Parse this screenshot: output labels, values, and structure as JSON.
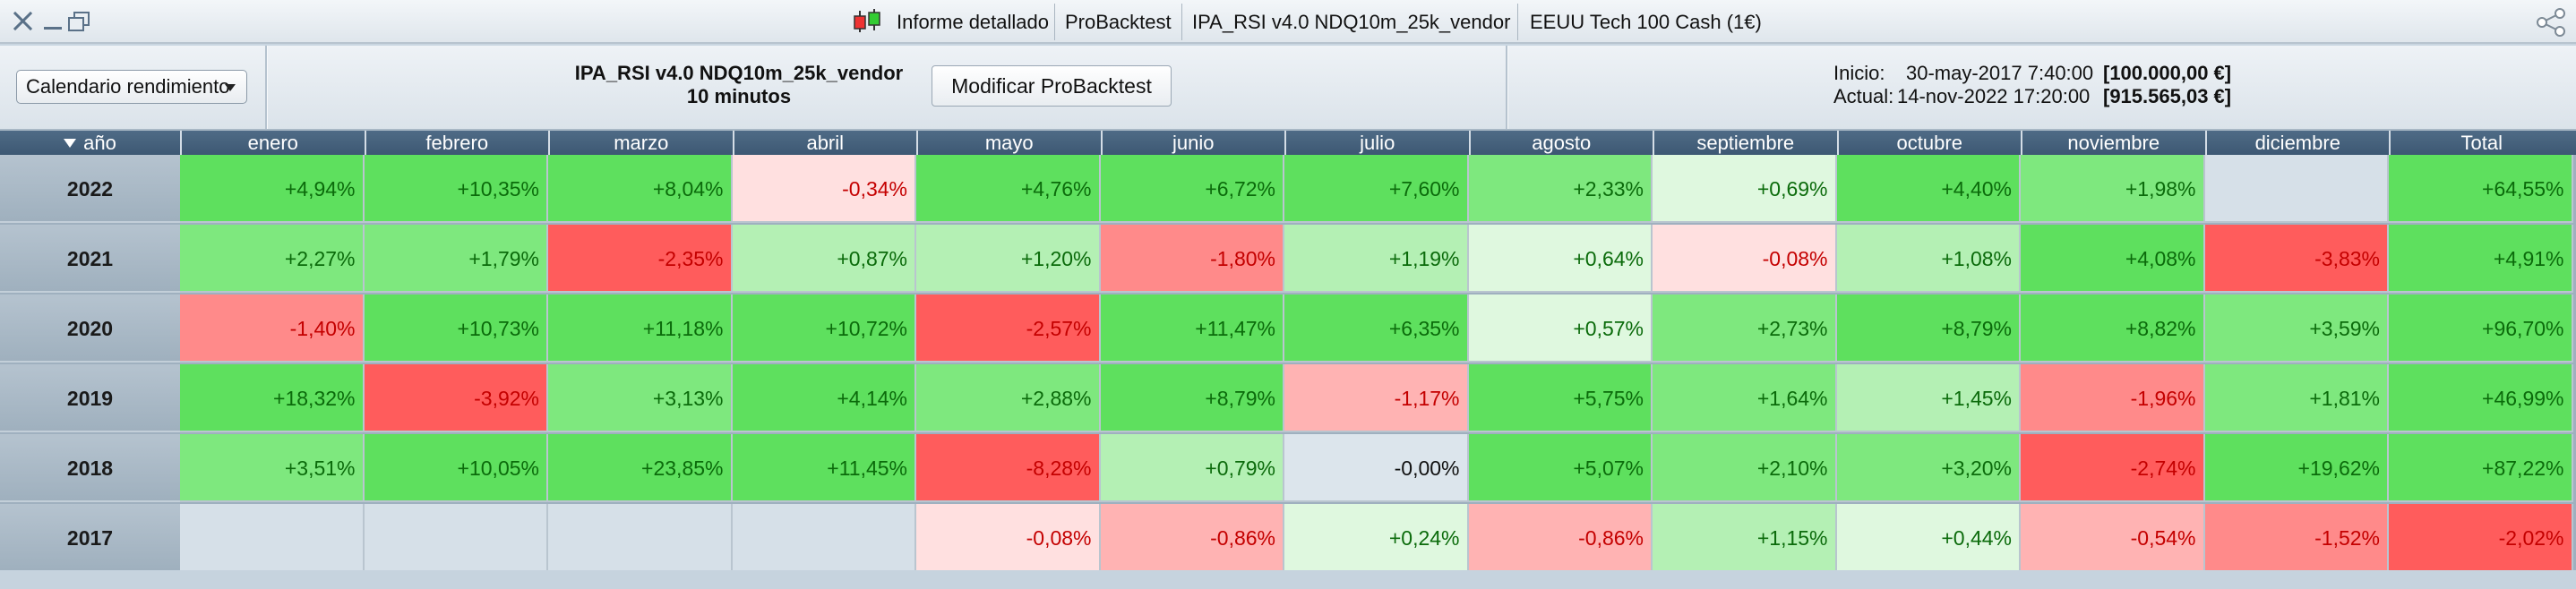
{
  "window": {
    "close_icon": "close-icon",
    "minimize_icon": "minimize-icon",
    "restore_icon": "restore-icon"
  },
  "toolbar": {
    "chart_icon": "candlestick-chart-icon",
    "report_label": "Informe detallado",
    "probacktest_label": "ProBacktest",
    "strategy_label": "IPA_RSI v4.0 NDQ10m_25k_vendor",
    "instrument_label": "EEUU Tech 100 Cash (1€)",
    "share_icon": "share-icon"
  },
  "infobar": {
    "calendar_select": "Calendario rendimiento",
    "strategy_name": "IPA_RSI v4.0 NDQ10m_25k_vendor",
    "timeframe": "10 minutos",
    "modify_button": "Modificar ProBacktest",
    "start_label": "Inicio:",
    "start_date": "30-may-2017 7:40:00",
    "start_capital": "[100.000,00 €]",
    "current_label": "Actual:",
    "current_date": "14-nov-2022 17:20:00",
    "current_capital": "[915.565,03 €]"
  },
  "table": {
    "year_header": "año",
    "months": [
      "enero",
      "febrero",
      "marzo",
      "abril",
      "mayo",
      "junio",
      "julio",
      "agosto",
      "septiembre",
      "octubre",
      "noviembre",
      "diciembre"
    ],
    "total_header": "Total",
    "rows": [
      {
        "year": "2022",
        "values": [
          "+4,94%",
          "+10,35%",
          "+8,04%",
          "-0,34%",
          "+4,76%",
          "+6,72%",
          "+7,60%",
          "+2,33%",
          "+0,69%",
          "+4,40%",
          "+1,98%",
          "",
          "+64,55%"
        ]
      },
      {
        "year": "2021",
        "values": [
          "+2,27%",
          "+1,79%",
          "-2,35%",
          "+0,87%",
          "+1,20%",
          "-1,80%",
          "+1,19%",
          "+0,64%",
          "-0,08%",
          "+1,08%",
          "+4,08%",
          "-3,83%",
          "+4,91%"
        ]
      },
      {
        "year": "2020",
        "values": [
          "-1,40%",
          "+10,73%",
          "+11,18%",
          "+10,72%",
          "-2,57%",
          "+11,47%",
          "+6,35%",
          "+0,57%",
          "+2,73%",
          "+8,79%",
          "+8,82%",
          "+3,59%",
          "+96,70%"
        ]
      },
      {
        "year": "2019",
        "values": [
          "+18,32%",
          "-3,92%",
          "+3,13%",
          "+4,14%",
          "+2,88%",
          "+8,79%",
          "-1,17%",
          "+5,75%",
          "+1,64%",
          "+1,45%",
          "-1,96%",
          "+1,81%",
          "+46,99%"
        ]
      },
      {
        "year": "2018",
        "values": [
          "+3,51%",
          "+10,05%",
          "+23,85%",
          "+11,45%",
          "-8,28%",
          "+0,79%",
          "-0,00%",
          "+5,07%",
          "+2,10%",
          "+3,20%",
          "-2,74%",
          "+19,62%",
          "+87,22%"
        ]
      },
      {
        "year": "2017",
        "values": [
          "",
          "",
          "",
          "",
          "-0,08%",
          "-0,86%",
          "+0,24%",
          "-0,86%",
          "+1,15%",
          "+0,44%",
          "-0,54%",
          "-1,52%",
          "-2,02%"
        ]
      }
    ],
    "colors": {
      "empty": "#d6e0e8",
      "zero": "#dce5ec",
      "pos_strong": "#5ee05e",
      "pos_medium": "#7ee87e",
      "pos_light": "#b4f0b4",
      "pos_faint": "#dff8df",
      "neg_strong": "#ff5c5c",
      "neg_medium": "#ff8a8a",
      "neg_light": "#ffb3b3",
      "neg_faint": "#ffe0e0"
    }
  }
}
